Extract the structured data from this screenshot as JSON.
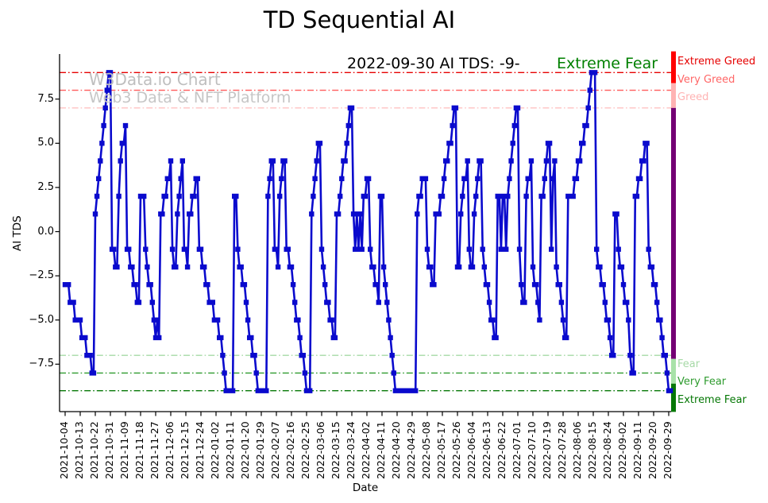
{
  "title": "TD Sequential AI",
  "watermark": {
    "line1": "W3Data.io Chart",
    "line2": "Web3 Data & NFT Platform"
  },
  "annotation": {
    "date_text": "2022-09-30 AI TDS: -9-",
    "sentiment_text": "Extreme Fear",
    "sentiment_color": "#008000"
  },
  "axes": {
    "ylabel": "AI TDS",
    "xlabel": "Date",
    "y_tick_labels": [
      "7.5",
      "5.0",
      "2.5",
      "0.0",
      "−2.5",
      "−5.0",
      "−7.5"
    ],
    "y_tick_values": [
      7.5,
      5.0,
      2.5,
      0.0,
      -2.5,
      -5.0,
      -7.5
    ]
  },
  "thresholds": [
    {
      "value": 9,
      "label": "Extreme Greed",
      "color": "#e60000",
      "label_color": "#e60000"
    },
    {
      "value": 8,
      "label": "Very Greed",
      "color": "#ff5c5c",
      "label_color": "#ff6666"
    },
    {
      "value": 7,
      "label": "Greed",
      "color": "#ffc2c2",
      "label_color": "#ffb3b3"
    },
    {
      "value": -7,
      "label": "Fear",
      "color": "#a6d9a6",
      "label_color": "#a6d9a6"
    },
    {
      "value": -8,
      "label": "Very Fear",
      "color": "#2e9b2e",
      "label_color": "#2e9b2e"
    },
    {
      "value": -9,
      "label": "Extreme Fear",
      "color": "#067806",
      "label_color": "#067806"
    }
  ],
  "edge_strip": {
    "segments": [
      {
        "from": 10.2,
        "to": 8.4,
        "color": "#ff0000"
      },
      {
        "from": 8.4,
        "to": 7.0,
        "color": "#ffb3b3"
      },
      {
        "from": 7.0,
        "to": -7.2,
        "color": "#730073"
      },
      {
        "from": -7.2,
        "to": -8.6,
        "color": "#a8e2a8"
      },
      {
        "from": -8.6,
        "to": -10.2,
        "color": "#067806"
      }
    ]
  },
  "chart_data": {
    "type": "line",
    "title": "TD Sequential AI",
    "xlabel": "Date",
    "ylabel": "AI TDS",
    "legend": "none",
    "grid": false,
    "series_name": "AI TDS",
    "series_color": "#0a0acd",
    "marker": "square",
    "ylim": [
      -10.2,
      10.05
    ],
    "start_date": "2021-10-04",
    "frequency": "daily",
    "x_tick_labels": [
      "2021-10-04",
      "2021-10-13",
      "2021-10-22",
      "2021-10-31",
      "2021-11-09",
      "2021-11-18",
      "2021-11-27",
      "2021-12-06",
      "2021-12-15",
      "2021-12-24",
      "2022-01-02",
      "2022-01-11",
      "2022-01-20",
      "2022-01-29",
      "2022-02-07",
      "2022-02-16",
      "2022-02-25",
      "2022-03-06",
      "2022-03-15",
      "2022-03-24",
      "2022-04-02",
      "2022-04-11",
      "2022-04-20",
      "2022-04-29",
      "2022-05-08",
      "2022-05-17",
      "2022-05-26",
      "2022-06-04",
      "2022-06-13",
      "2022-06-22",
      "2022-07-01",
      "2022-07-10",
      "2022-07-19",
      "2022-07-28",
      "2022-08-06",
      "2022-08-15",
      "2022-08-24",
      "2022-09-02",
      "2022-09-11",
      "2022-09-20",
      "2022-09-29"
    ],
    "x_tick_step_days": 9,
    "values": [
      -3,
      -3,
      -3,
      -4,
      -4,
      -4,
      -5,
      -5,
      -5,
      -5,
      -6,
      -6,
      -6,
      -7,
      -7,
      -7,
      -8,
      -8,
      1,
      2,
      3,
      4,
      5,
      6,
      7,
      8,
      9,
      9,
      -1,
      -1,
      -2,
      -2,
      2,
      4,
      5,
      5,
      6,
      -1,
      -1,
      -2,
      -2,
      -3,
      -3,
      -4,
      -4,
      2,
      2,
      2,
      -1,
      -2,
      -3,
      -3,
      -4,
      -5,
      -6,
      -5,
      -6,
      1,
      1,
      2,
      2,
      3,
      3,
      4,
      -1,
      -2,
      -2,
      1,
      2,
      3,
      4,
      -1,
      -1,
      -2,
      1,
      1,
      2,
      2,
      3,
      3,
      -1,
      -1,
      -2,
      -2,
      -3,
      -3,
      -4,
      -4,
      -4,
      -5,
      -5,
      -5,
      -6,
      -6,
      -7,
      -8,
      -9,
      -9,
      -9,
      -9,
      -9,
      2,
      2,
      -1,
      -2,
      -2,
      -3,
      -3,
      -4,
      -5,
      -6,
      -6,
      -7,
      -7,
      -8,
      -9,
      -9,
      -9,
      -9,
      -9,
      -9,
      2,
      3,
      4,
      4,
      -1,
      -1,
      -2,
      2,
      3,
      4,
      4,
      -1,
      -1,
      -2,
      -2,
      -3,
      -4,
      -5,
      -5,
      -6,
      -7,
      -7,
      -8,
      -9,
      -9,
      -9,
      1,
      2,
      3,
      4,
      5,
      5,
      -1,
      -2,
      -3,
      -4,
      -4,
      -5,
      -5,
      -6,
      -6,
      1,
      1,
      2,
      3,
      4,
      4,
      5,
      6,
      7,
      7,
      1,
      -1,
      1,
      -1,
      1,
      -1,
      2,
      2,
      3,
      3,
      -1,
      -2,
      -2,
      -3,
      -3,
      -4,
      2,
      2,
      -2,
      -3,
      -4,
      -5,
      -6,
      -7,
      -8,
      -9,
      -9,
      -9,
      -9,
      -9,
      -9,
      -9,
      -9,
      -9,
      -9,
      -9,
      -9,
      -9,
      1,
      2,
      2,
      3,
      3,
      3,
      -1,
      -2,
      -2,
      -3,
      -3,
      1,
      1,
      1,
      2,
      2,
      3,
      4,
      4,
      5,
      5,
      6,
      7,
      7,
      -2,
      -2,
      1,
      2,
      3,
      3,
      4,
      -1,
      -2,
      -2,
      1,
      2,
      3,
      4,
      4,
      -1,
      -2,
      -3,
      -3,
      -4,
      -5,
      -5,
      -6,
      -6,
      2,
      2,
      -1,
      2,
      2,
      -1,
      2,
      3,
      4,
      5,
      6,
      7,
      7,
      -1,
      -3,
      -4,
      -4,
      2,
      3,
      3,
      4,
      -2,
      -3,
      -3,
      -4,
      -5,
      2,
      2,
      3,
      4,
      5,
      5,
      -1,
      3,
      4,
      -2,
      -3,
      -3,
      -4,
      -5,
      -6,
      -6,
      2,
      2,
      2,
      2,
      3,
      3,
      4,
      4,
      5,
      5,
      6,
      6,
      7,
      8,
      9,
      9,
      9,
      -1,
      -2,
      -2,
      -3,
      -3,
      -4,
      -5,
      -5,
      -6,
      -7,
      -7,
      1,
      1,
      -1,
      -2,
      -2,
      -3,
      -4,
      -4,
      -5,
      -7,
      -8,
      -8,
      2,
      2,
      3,
      3,
      4,
      4,
      5,
      5,
      -1,
      -2,
      -2,
      -3,
      -3,
      -4,
      -5,
      -5,
      -6,
      -7,
      -7,
      -8,
      -9,
      -9
    ]
  }
}
